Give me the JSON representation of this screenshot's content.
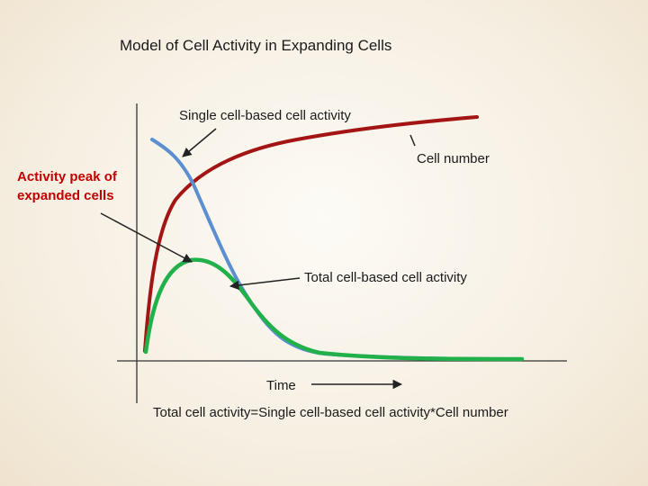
{
  "title": "Model of  Cell  Activity in Expanding Cells",
  "labels": {
    "single_activity": "Single cell-based cell activity",
    "cell_number": "Cell number",
    "activity_peak_line1": "Activity peak of",
    "activity_peak_line2": "expanded cells",
    "total_activity": "Total cell-based cell activity",
    "time": "Time",
    "formula": "Total cell activity=Single cell-based cell activity*Cell number"
  },
  "colors": {
    "cell_number_curve": "#a31515",
    "single_activity_curve": "#5b8fd0",
    "total_activity_curve": "#22b04a",
    "axis": "#333333",
    "peak_label": "#c00000"
  }
}
